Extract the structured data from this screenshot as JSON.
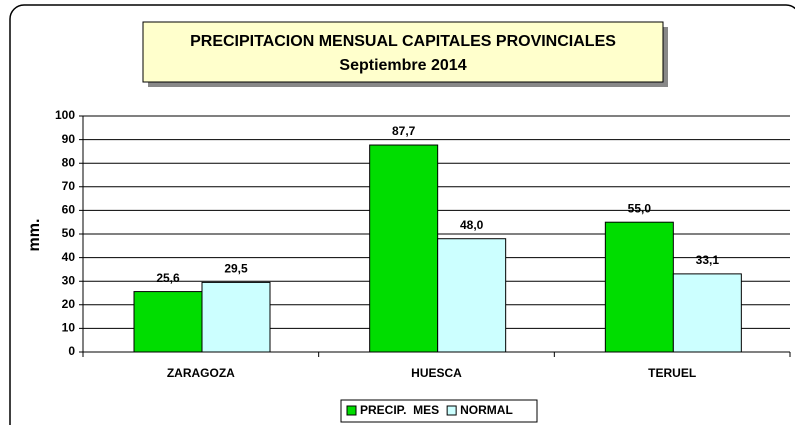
{
  "chart_data": {
    "type": "bar",
    "title": "PRECIPITACION MENSUAL CAPITALES PROVINCIALES",
    "subtitle": "Septiembre 2014",
    "y_label": "mm.",
    "categories": [
      "ZARAGOZA",
      "HUESCA",
      "TERUEL"
    ],
    "series": [
      {
        "name": "PRECIP.  MES",
        "color": "#00dd00",
        "values": [
          25.6,
          87.7,
          55
        ],
        "value_labels": [
          "25,6",
          "87,7",
          "55,0"
        ]
      },
      {
        "name": "NORMAL",
        "color": "#ccffff",
        "values": [
          29.5,
          48,
          33.1
        ],
        "value_labels": [
          "29,5",
          "48,0",
          "33,1"
        ]
      }
    ],
    "ylim": [
      0,
      100
    ],
    "yticks": [
      0,
      10,
      20,
      30,
      40,
      50,
      60,
      70,
      80,
      90,
      100
    ],
    "grid": true
  }
}
